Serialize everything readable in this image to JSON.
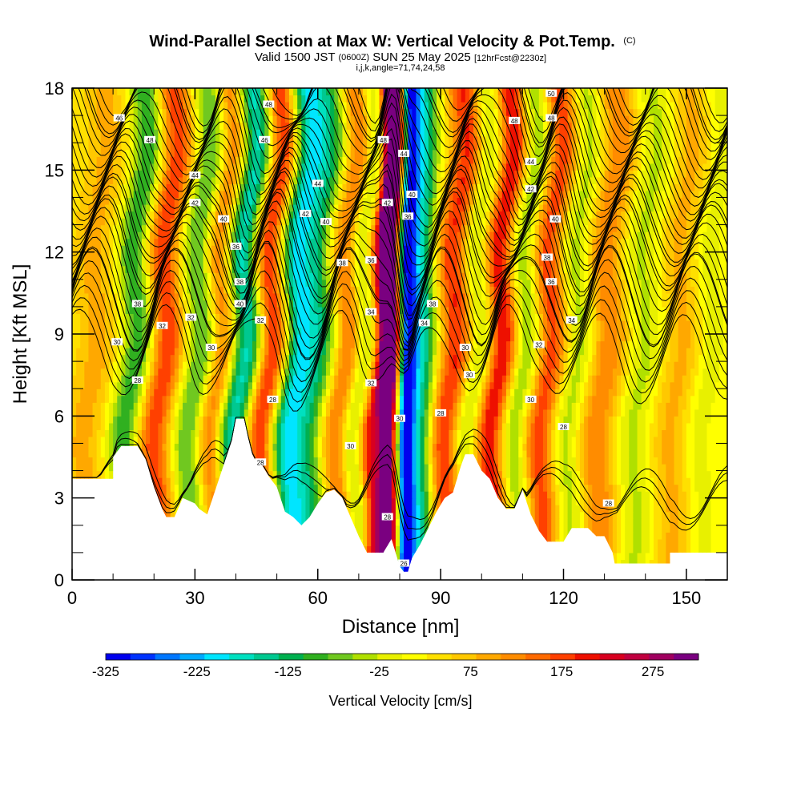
{
  "title": "Wind-Parallel Section at Max W: Vertical Velocity & Pot.Temp.",
  "copyright": "(C)",
  "subtitle_parts": [
    "Valid 1500 JST",
    "(0600Z)",
    "SUN 25 May 2025",
    "[12hrFcst@2230z]"
  ],
  "subtitle2": "i,j,k,angle=71,74,24,58",
  "chart_data": {
    "type": "heatmap",
    "xlabel": "Distance [nm]",
    "ylabel": "Height [Kft MSL]",
    "xlim": [
      0,
      160
    ],
    "ylim": [
      0,
      18
    ],
    "x_ticks": [
      0,
      30,
      60,
      90,
      120,
      150
    ],
    "y_ticks": [
      0,
      3,
      6,
      9,
      12,
      15,
      18
    ],
    "colorbar": {
      "label": "Vertical Velocity [cm/s]",
      "min": -325,
      "max": 325,
      "step": 25,
      "tick_values": [
        -325,
        -225,
        -125,
        -25,
        75,
        175,
        275
      ],
      "colors": [
        "#0000ee",
        "#0033ff",
        "#0077ff",
        "#00aaff",
        "#00e5ff",
        "#00e0c0",
        "#00c890",
        "#00b050",
        "#30b020",
        "#70c820",
        "#b0e000",
        "#e8f000",
        "#ffff00",
        "#ffe000",
        "#ffc800",
        "#ffa800",
        "#ff8c00",
        "#ff6a00",
        "#ff4000",
        "#ee1000",
        "#d80020",
        "#c00040",
        "#a00060",
        "#7a0080"
      ]
    },
    "terrain_kft": [
      [
        0,
        3.7
      ],
      [
        10,
        3.7
      ],
      [
        10,
        4.5
      ],
      [
        12,
        4.9
      ],
      [
        16,
        4.9
      ],
      [
        18,
        4.4
      ],
      [
        20,
        3.4
      ],
      [
        22,
        2.6
      ],
      [
        23,
        2.3
      ],
      [
        25,
        2.3
      ],
      [
        27,
        3.0
      ],
      [
        30,
        2.8
      ],
      [
        31,
        2.6
      ],
      [
        33,
        2.4
      ],
      [
        35,
        3.3
      ],
      [
        37,
        4.2
      ],
      [
        39,
        5.1
      ],
      [
        40,
        5.9
      ],
      [
        42,
        5.9
      ],
      [
        43,
        5.2
      ],
      [
        44,
        4.6
      ],
      [
        45,
        4.3
      ],
      [
        46,
        4.3
      ],
      [
        48,
        3.8
      ],
      [
        50,
        3.4
      ],
      [
        52,
        2.5
      ],
      [
        54,
        2.3
      ],
      [
        56,
        2.0
      ],
      [
        58,
        2.3
      ],
      [
        60,
        2.8
      ],
      [
        62,
        3.2
      ],
      [
        64,
        3.3
      ],
      [
        66,
        3.0
      ],
      [
        68,
        2.3
      ],
      [
        70,
        1.6
      ],
      [
        72,
        1.0
      ],
      [
        76,
        1.0
      ],
      [
        78,
        1.5
      ],
      [
        79,
        1.0
      ],
      [
        80,
        0.5
      ],
      [
        81,
        0.3
      ],
      [
        82,
        0.3
      ],
      [
        83,
        0.8
      ],
      [
        85,
        1.3
      ],
      [
        87,
        1.9
      ],
      [
        89,
        2.5
      ],
      [
        91,
        3.0
      ],
      [
        93,
        3.2
      ],
      [
        95,
        4.2
      ],
      [
        96,
        4.6
      ],
      [
        98,
        4.6
      ],
      [
        100,
        4.0
      ],
      [
        102,
        3.7
      ],
      [
        104,
        3.0
      ],
      [
        106,
        2.6
      ],
      [
        108,
        2.6
      ],
      [
        110,
        3.3
      ],
      [
        112,
        2.4
      ],
      [
        114,
        1.8
      ],
      [
        116,
        1.4
      ],
      [
        120,
        1.4
      ],
      [
        122,
        1.9
      ],
      [
        126,
        1.9
      ],
      [
        128,
        1.6
      ],
      [
        130,
        1.6
      ],
      [
        132,
        1.0
      ],
      [
        132.5,
        0.6
      ],
      [
        140,
        0.6
      ],
      [
        146,
        0.6
      ],
      [
        146,
        1.0
      ],
      [
        150,
        1.0
      ],
      [
        160,
        1.0
      ]
    ],
    "w_bands": [
      {
        "x": 5,
        "w": 60,
        "width": 5
      },
      {
        "x": 15,
        "w": -125,
        "width": 4
      },
      {
        "x": 22,
        "w": 150,
        "width": 4
      },
      {
        "x": 31,
        "w": -125,
        "width": 4
      },
      {
        "x": 36,
        "w": 160,
        "width": 4
      },
      {
        "x": 42,
        "w": -250,
        "width": 5
      },
      {
        "x": 48,
        "w": 260,
        "width": 5
      },
      {
        "x": 54,
        "w": -250,
        "width": 5
      },
      {
        "x": 61,
        "w": -100,
        "width": 4
      },
      {
        "x": 66,
        "w": 120,
        "width": 4
      },
      {
        "x": 71,
        "w": -100,
        "width": 3
      },
      {
        "x": 75,
        "w": 175,
        "width": 3
      },
      {
        "x": 80,
        "w": 310,
        "width": 2.5
      },
      {
        "x": 84,
        "w": -325,
        "width": 2.5
      },
      {
        "x": 88,
        "w": -150,
        "width": 3
      },
      {
        "x": 93,
        "w": 160,
        "width": 4
      },
      {
        "x": 99,
        "w": -100,
        "width": 4
      },
      {
        "x": 104,
        "w": 200,
        "width": 4
      },
      {
        "x": 110,
        "w": -100,
        "width": 4
      },
      {
        "x": 116,
        "w": 150,
        "width": 4
      },
      {
        "x": 123,
        "w": -75,
        "width": 4
      },
      {
        "x": 130,
        "w": 100,
        "width": 5
      },
      {
        "x": 139,
        "w": -60,
        "width": 5
      },
      {
        "x": 148,
        "w": 60,
        "width": 5
      },
      {
        "x": 155,
        "w": -40,
        "width": 4
      }
    ],
    "theta_contours": [
      {
        "label": "28",
        "base_kft": 3.4,
        "step": 2
      },
      {
        "label": "30",
        "base_kft": 8.7,
        "step": 2
      },
      {
        "label": "32",
        "base_kft": 9.7,
        "step": 2
      },
      {
        "label": "34",
        "base_kft": 10.4,
        "step": 2
      },
      {
        "label": "36",
        "base_kft": 11.5,
        "step": 2
      },
      {
        "label": "38",
        "base_kft": 12.3,
        "step": 2
      },
      {
        "label": "40",
        "base_kft": 13.1,
        "step": 2
      },
      {
        "label": "42",
        "base_kft": 14.0,
        "step": 2
      },
      {
        "label": "44",
        "base_kft": 14.9,
        "step": 2
      },
      {
        "label": "46",
        "base_kft": 15.9,
        "step": 2
      },
      {
        "label": "48",
        "base_kft": 17.0,
        "step": 2
      },
      {
        "label": "50",
        "base_kft": 17.8,
        "step": 2
      }
    ]
  }
}
